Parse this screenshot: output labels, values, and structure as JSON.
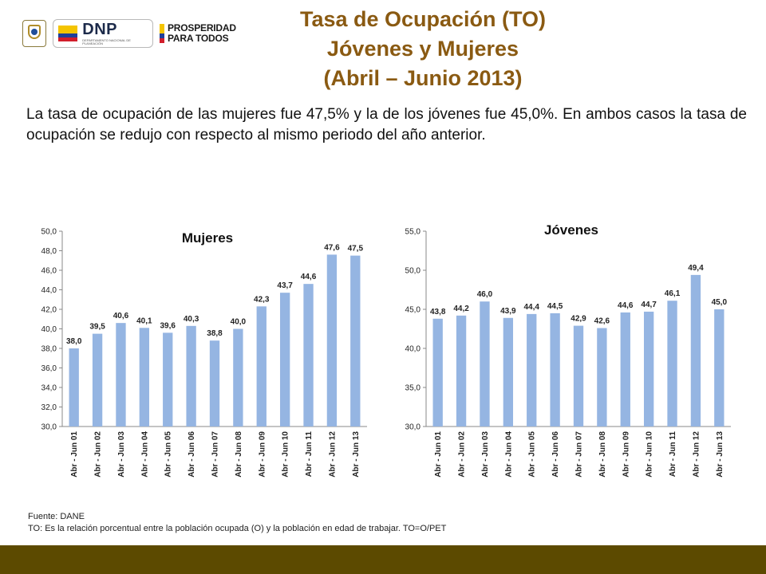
{
  "header": {
    "title_lines": [
      "Tasa de Ocupación (TO)",
      "Jóvenes y Mujeres",
      "(Abril – Junio 2013)"
    ],
    "logos": {
      "seal": "coat-of-arms-icon",
      "dnp": "DNP",
      "dnp_sub": "DEPARTAMENTO NACIONAL DE PLANEACIÓN",
      "prosperidad": [
        "PROSPERIDAD",
        "PARA TODOS"
      ]
    }
  },
  "intro_text": "La tasa de ocupación de las mujeres fue 47,5% y la de los jóvenes fue 45,0%. En ambos casos la tasa de ocupación se redujo con respecto al mismo periodo del año anterior.",
  "colors": {
    "bar": "#95b5e2",
    "title": "#8a5a12",
    "band": "#5c4a00"
  },
  "chart_data": [
    {
      "type": "bar",
      "title": "Mujeres",
      "categories": [
        "Abr - Jun 01",
        "Abr - Jun 02",
        "Abr - Jun 03",
        "Abr - Jun 04",
        "Abr - Jun 05",
        "Abr - Jun 06",
        "Abr - Jun 07",
        "Abr - Jun 08",
        "Abr - Jun 09",
        "Abr - Jun 10",
        "Abr - Jun 11",
        "Abr - Jun 12",
        "Abr - Jun 13"
      ],
      "values": [
        38.0,
        39.5,
        40.6,
        40.1,
        39.6,
        40.3,
        38.8,
        40.0,
        42.3,
        43.7,
        44.6,
        47.6,
        47.5
      ],
      "value_labels": [
        "38,0",
        "39,5",
        "40,6",
        "40,1",
        "39,6",
        "40,3",
        "38,8",
        "40,0",
        "42,3",
        "43,7",
        "44,6",
        "47,6",
        "47,5"
      ],
      "ylim": [
        30,
        50
      ],
      "yticks": [
        "30,0",
        "32,0",
        "34,0",
        "36,0",
        "38,0",
        "40,0",
        "42,0",
        "44,0",
        "46,0",
        "48,0",
        "50,0"
      ],
      "grid": false
    },
    {
      "type": "bar",
      "title": "Jóvenes",
      "categories": [
        "Abr - Jun 01",
        "Abr - Jun 02",
        "Abr - Jun 03",
        "Abr - Jun 04",
        "Abr - Jun 05",
        "Abr - Jun 06",
        "Abr - Jun 07",
        "Abr - Jun 08",
        "Abr - Jun 09",
        "Abr - Jun 10",
        "Abr - Jun 11",
        "Abr - Jun 12",
        "Abr - Jun 13"
      ],
      "values": [
        43.8,
        44.2,
        46.0,
        43.9,
        44.4,
        44.5,
        42.9,
        42.6,
        44.6,
        44.7,
        46.1,
        49.4,
        45.0
      ],
      "value_labels": [
        "43,8",
        "44,2",
        "46,0",
        "43,9",
        "44,4",
        "44,5",
        "42,9",
        "42,6",
        "44,6",
        "44,7",
        "46,1",
        "49,4",
        "45,0"
      ],
      "ylim": [
        30,
        55
      ],
      "yticks": [
        "30,0",
        "35,0",
        "40,0",
        "45,0",
        "50,0",
        "55,0"
      ],
      "grid": false
    }
  ],
  "footer": {
    "source": "Fuente: DANE",
    "note": "TO: Es la relación porcentual entre la población ocupada (O) y la población  en edad de trabajar. TO=O/PET"
  }
}
